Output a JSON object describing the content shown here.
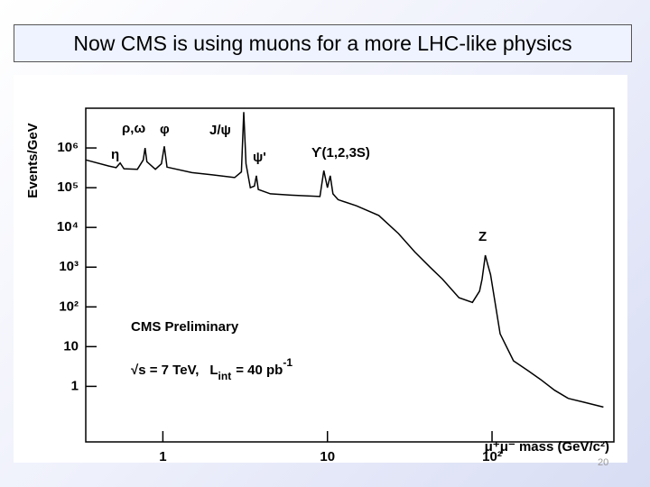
{
  "slide": {
    "title": "Now CMS is using muons for a more LHC-like physics",
    "page_number": "20"
  },
  "chart_data": {
    "type": "line",
    "y_label": "Events/GeV",
    "x_label": "μ⁺μ⁻ mass (GeV/c²)",
    "log_x": true,
    "log_y": true,
    "color": "#000000",
    "x": [
      0.34,
      0.47,
      0.52,
      0.55,
      0.58,
      0.7,
      0.76,
      0.78,
      0.8,
      0.9,
      0.98,
      1.02,
      1.06,
      1.5,
      2.0,
      2.73,
      3.0,
      3.1,
      3.2,
      3.4,
      3.6,
      3.7,
      3.8,
      4.5,
      6.0,
      9.0,
      9.5,
      10.0,
      10.4,
      10.8,
      11.6,
      15,
      20.5,
      27,
      34,
      42,
      50,
      63,
      76,
      84,
      87,
      91,
      94,
      98,
      112,
      135,
      165,
      197,
      240,
      290,
      360,
      475
    ],
    "values": [
      500000,
      350000,
      320000,
      420000,
      300000,
      290000,
      500000,
      1000000,
      450000,
      290000,
      400000,
      1100000,
      330000,
      240000,
      210000,
      180000,
      250000,
      8000000,
      400000,
      100000,
      110000,
      200000,
      90000,
      70000,
      65000,
      60000,
      270000,
      100000,
      200000,
      70000,
      50000,
      35000,
      20000,
      7000,
      2400,
      1000,
      500,
      170,
      130,
      250,
      500,
      2000,
      1200,
      650,
      21,
      4.4,
      2.5,
      1.5,
      0.8,
      0.5,
      0.4,
      0.3
    ],
    "xlim": [
      0.34,
      550
    ],
    "ylim": [
      0.04,
      10000000
    ],
    "xticks": [
      1,
      10,
      {
        "value": 100,
        "label": "10²"
      }
    ],
    "yticks": [
      1,
      10,
      {
        "value": 100,
        "label": "10²"
      },
      {
        "value": 1000,
        "label": "10³"
      },
      {
        "value": 10000,
        "label": "10⁴"
      },
      {
        "value": 100000,
        "label": "10⁵"
      },
      {
        "value": 1000000,
        "label": "10⁶"
      }
    ],
    "annotations": [
      "η",
      "ρ,ω",
      "φ",
      "J/ψ",
      "ψ'",
      "ϒ(1,2,3S)",
      "Z",
      "CMS Preliminary"
    ],
    "energy_text": {
      "sqrt_s": "√s = 7 TeV,",
      "lumi_symbol": "L",
      "lumi_sub": "int",
      "lumi_value": "= 40 pb",
      "lumi_exp": "-1"
    }
  }
}
